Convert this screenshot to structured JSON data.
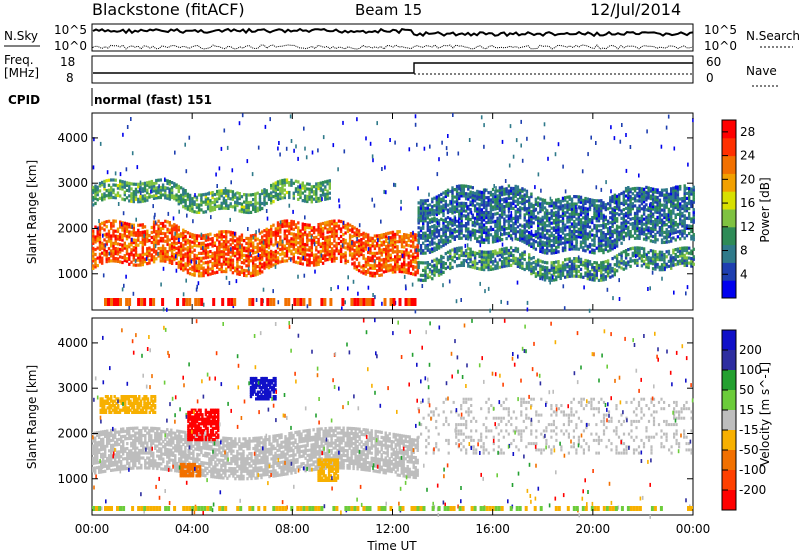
{
  "header": {
    "station": "Blackstone (fitACF)",
    "beam": "Beam 15",
    "date": "12/Jul/2014"
  },
  "summary": {
    "nsky_label": "N.Sky",
    "nsearch_label": "N.Search",
    "freq_label_line1": "Freq.",
    "freq_label_line2": "[MHz]",
    "nave_label": "Nave",
    "cpid_label": "CPID",
    "cpid_value": "normal (fast) 151",
    "noise_ticks_top": "10^5",
    "noise_ticks_bottom": "10^0",
    "freq_ticks": [
      "18",
      "8"
    ],
    "nave_ticks": [
      "60",
      "0"
    ]
  },
  "colors": {
    "power_scale": [
      "#0000ee",
      "#1e3fb0",
      "#2f7a8a",
      "#2e8b57",
      "#7fc241",
      "#d8e000",
      "#f2a000",
      "#f27000",
      "#ff3000",
      "#ff0000"
    ],
    "velocity_scale": [
      "#1010c8",
      "#2e2ea0",
      "#23a030",
      "#6ccc3a",
      "#bdbdbd",
      "#f7b000",
      "#f27000",
      "#ff4000",
      "#ff0000"
    ]
  },
  "chart_data": [
    {
      "type": "heatmap",
      "name": "power",
      "ylabel": "Slant Range [km]",
      "xlabel": "",
      "x_ticks": [
        "00:00",
        "04:00",
        "08:00",
        "12:00",
        "16:00",
        "20:00",
        "00:00"
      ],
      "y_ticks": [
        "1000",
        "2000",
        "3000",
        "4000"
      ],
      "ylim": [
        200,
        4550
      ],
      "colorbar": {
        "label": "Power [dB]",
        "ticks": [
          "4",
          "8",
          "12",
          "16",
          "20",
          "24",
          "28"
        ]
      },
      "bands": [
        {
          "t0": 0.0,
          "t1": 13.0,
          "r_start": 1100,
          "r_end": 2000,
          "level": 24
        },
        {
          "t0": 0.0,
          "t1": 9.5,
          "r_start": 2500,
          "r_end": 2900,
          "level": 10
        },
        {
          "t0": 13.0,
          "t1": 24.0,
          "r_start": 1000,
          "r_end": 1400,
          "level": 8
        },
        {
          "t0": 13.0,
          "t1": 24.0,
          "r_start": 1600,
          "r_end": 2800,
          "level": 6
        }
      ]
    },
    {
      "type": "heatmap",
      "name": "velocity",
      "ylabel": "Slant Range [km]",
      "xlabel": "Time UT",
      "x_ticks": [
        "00:00",
        "04:00",
        "08:00",
        "12:00",
        "16:00",
        "20:00",
        "00:00"
      ],
      "y_ticks": [
        "1000",
        "2000",
        "3000",
        "4000"
      ],
      "ylim": [
        200,
        4550
      ],
      "colorbar": {
        "label": "Velocity [m s^-1]",
        "ticks": [
          "200",
          "100",
          "50",
          "15",
          "-15",
          "-50",
          "-100",
          "-200"
        ]
      }
    }
  ]
}
